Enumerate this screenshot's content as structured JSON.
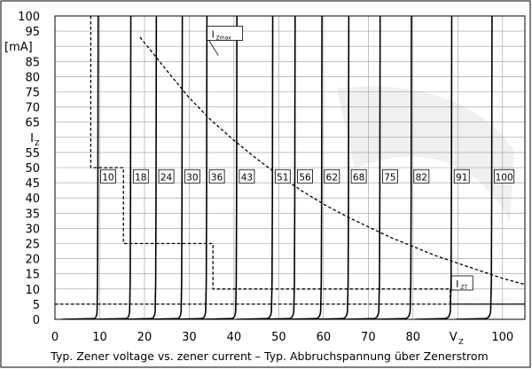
{
  "chart_data": {
    "type": "line",
    "title": "",
    "caption": "Typ. Zener voltage vs. zener current  –  Typ. Abbruchspannung über Zenerstrom",
    "xlabel": "V",
    "xlabel_sub": "Z",
    "ylabel": "I",
    "ylabel_sub": "Z",
    "y_unit": "[mA]",
    "xlim": [
      0,
      105
    ],
    "ylim": [
      0,
      100
    ],
    "x_ticks": [
      "0",
      "10",
      "20",
      "30",
      "40",
      "50",
      "60",
      "70",
      "80",
      "100"
    ],
    "x_tick_values": [
      0,
      10,
      20,
      30,
      40,
      50,
      60,
      70,
      80,
      100
    ],
    "y_ticks": [
      "0",
      "5",
      "10",
      "15",
      "20",
      "25",
      "30",
      "35",
      "40",
      "45",
      "50",
      "55",
      "60",
      "65",
      "70",
      "75",
      "80",
      "85",
      "90",
      "95",
      "100"
    ],
    "y_tick_values": [
      0,
      5,
      10,
      15,
      20,
      25,
      30,
      35,
      40,
      45,
      50,
      55,
      60,
      65,
      70,
      75,
      80,
      85,
      90,
      95,
      100
    ],
    "y_tick_replacements": [
      {
        "value": 60,
        "label": "I"
      },
      {
        "value": 90,
        "label": "[mA]"
      }
    ],
    "grid": true,
    "zener_voltages": [
      "10",
      "18",
      "24",
      "30",
      "36",
      "43",
      "51",
      "56",
      "62",
      "68",
      "75",
      "82",
      "91",
      "100"
    ],
    "zener_label_y": 47,
    "zener_curves": [
      {
        "label": "10",
        "vz": 9.5,
        "knee": 0.8
      },
      {
        "label": "18",
        "vz": 16.8,
        "knee": 1.0
      },
      {
        "label": "24",
        "vz": 22.5,
        "knee": 1.0
      },
      {
        "label": "30",
        "vz": 28.3,
        "knee": 1.0
      },
      {
        "label": "36",
        "vz": 33.8,
        "knee": 1.1
      },
      {
        "label": "43",
        "vz": 40.5,
        "knee": 1.1
      },
      {
        "label": "51",
        "vz": 48.5,
        "knee": 1.2
      },
      {
        "label": "56",
        "vz": 53.5,
        "knee": 1.2
      },
      {
        "label": "62",
        "vz": 59.5,
        "knee": 1.2
      },
      {
        "label": "68",
        "vz": 65.5,
        "knee": 1.3
      },
      {
        "label": "75",
        "vz": 72.5,
        "knee": 1.3
      },
      {
        "label": "82",
        "vz": 79.5,
        "knee": 1.3
      },
      {
        "label": "91",
        "vz": 88.5,
        "knee": 1.4
      },
      {
        "label": "100",
        "vz": 97.5,
        "knee": 1.4
      }
    ],
    "series": [
      {
        "name": "IZmax",
        "label_main": "I",
        "label_sub": "Zmax",
        "style": "dashed",
        "x": [
          19,
          25,
          30,
          35,
          40,
          45,
          50,
          55,
          60,
          65,
          70,
          75,
          80,
          85,
          90,
          95,
          100,
          105
        ],
        "y": [
          93,
          82,
          73,
          65.5,
          59,
          53,
          47.5,
          42.5,
          38,
          34,
          30.5,
          27,
          24,
          21,
          18.5,
          16,
          13.5,
          11.5
        ],
        "label_at": {
          "x": 34,
          "y": 94
        }
      },
      {
        "name": "IZT",
        "label_main": "I",
        "label_sub": "ZT",
        "style": "dashed",
        "x": [
          8,
          8,
          8,
          15.3,
          15.3,
          15.3,
          35.3,
          35.3,
          35.3,
          88.3,
          88.3,
          105
        ],
        "y": [
          100,
          60,
          50,
          50,
          50,
          25,
          25,
          10,
          10,
          10,
          5,
          5
        ],
        "label_at": {
          "x": 88.6,
          "y": 11.7
        }
      },
      {
        "name": "5 mA reference",
        "style": "dashed",
        "x": [
          0,
          105
        ],
        "y": [
          5,
          5
        ]
      }
    ]
  }
}
